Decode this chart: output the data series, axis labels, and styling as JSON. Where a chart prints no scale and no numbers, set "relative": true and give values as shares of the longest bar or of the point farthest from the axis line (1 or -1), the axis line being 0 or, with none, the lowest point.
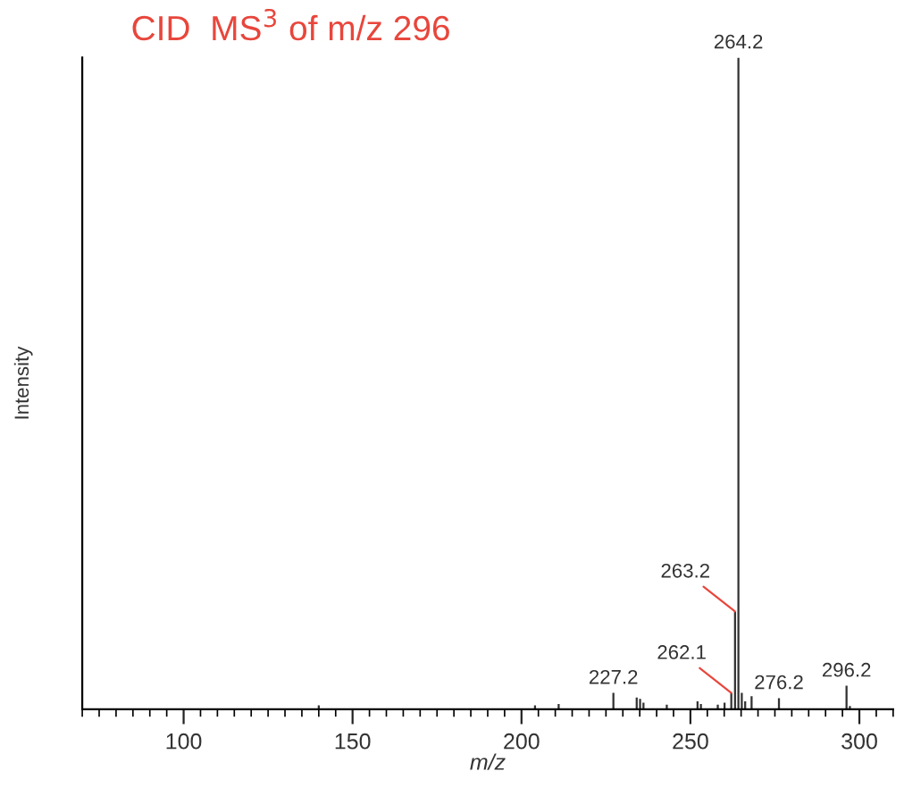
{
  "chart_data": {
    "type": "bar",
    "title": "CID  MS$^{3}$ of m/z 296",
    "xlabel": "m/z",
    "ylabel": "Intensity",
    "relative": true,
    "color": "#333333",
    "x": [
      140.0,
      204.0,
      211.0,
      227.2,
      234.1,
      235.1,
      236.1,
      243.0,
      252.1,
      253.1,
      258.1,
      260.1,
      262.1,
      263.2,
      264.2,
      265.2,
      266.2,
      268.1,
      276.2,
      296.2,
      297.2
    ],
    "values": [
      0.006,
      0.006,
      0.008,
      0.025,
      0.018,
      0.016,
      0.01,
      0.007,
      0.012,
      0.008,
      0.007,
      0.01,
      0.025,
      0.15,
      1,
      0.025,
      0.012,
      0.02,
      0.017,
      0.036,
      0.005
    ],
    "xlim": [
      70,
      310
    ],
    "xticks": [
      100,
      150,
      200,
      250,
      300
    ],
    "annotations": [
      {
        "text": "227.2",
        "x": 227.2,
        "y": 0.025
      },
      {
        "text": "262.1",
        "x": 262.1,
        "y": 0.025
      },
      {
        "text": "263.2",
        "x": 263.2,
        "y": 0.15
      },
      {
        "text": "264.2",
        "x": 264.2,
        "y": 1
      },
      {
        "text": "276.2",
        "x": 276.2,
        "y": 0.017
      },
      {
        "text": "296.2",
        "x": 296.2,
        "y": 0.036
      }
    ]
  }
}
